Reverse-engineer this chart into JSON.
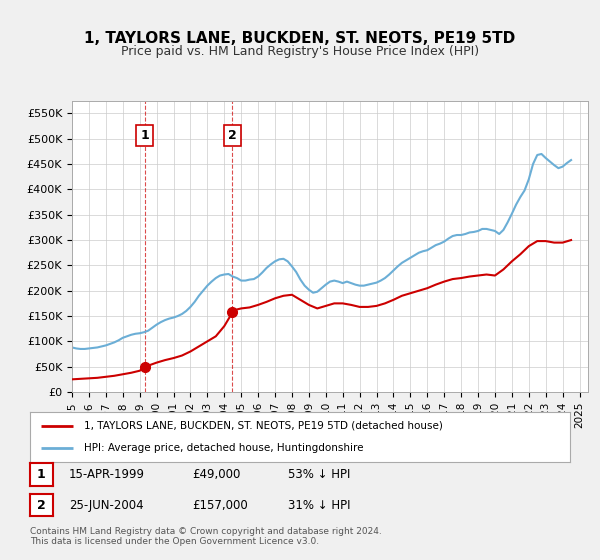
{
  "title": "1, TAYLORS LANE, BUCKDEN, ST. NEOTS, PE19 5TD",
  "subtitle": "Price paid vs. HM Land Registry's House Price Index (HPI)",
  "ylabel_values": [
    "£0",
    "£50K",
    "£100K",
    "£150K",
    "£200K",
    "£250K",
    "£300K",
    "£350K",
    "£400K",
    "£450K",
    "£500K",
    "£550K"
  ],
  "yticks": [
    0,
    50000,
    100000,
    150000,
    200000,
    250000,
    300000,
    350000,
    400000,
    450000,
    500000,
    550000
  ],
  "ylim": [
    0,
    575000
  ],
  "xlim_start": 1995.0,
  "xlim_end": 2025.5,
  "hpi_color": "#6baed6",
  "price_color": "#cc0000",
  "background_color": "#f0f0f0",
  "plot_bg_color": "#ffffff",
  "sale1_date": 1999.29,
  "sale1_price": 49000,
  "sale2_date": 2004.48,
  "sale2_price": 157000,
  "annotation1_label": "1",
  "annotation2_label": "2",
  "legend_line1": "1, TAYLORS LANE, BUCKDEN, ST. NEOTS, PE19 5TD (detached house)",
  "legend_line2": "HPI: Average price, detached house, Huntingdonshire",
  "table_row1": [
    "1",
    "15-APR-1999",
    "£49,000",
    "53% ↓ HPI"
  ],
  "table_row2": [
    "2",
    "25-JUN-2004",
    "£157,000",
    "31% ↓ HPI"
  ],
  "footer": "Contains HM Land Registry data © Crown copyright and database right 2024.\nThis data is licensed under the Open Government Licence v3.0.",
  "hpi_data": {
    "years": [
      1995.0,
      1995.25,
      1995.5,
      1995.75,
      1996.0,
      1996.25,
      1996.5,
      1996.75,
      1997.0,
      1997.25,
      1997.5,
      1997.75,
      1998.0,
      1998.25,
      1998.5,
      1998.75,
      1999.0,
      1999.25,
      1999.5,
      1999.75,
      2000.0,
      2000.25,
      2000.5,
      2000.75,
      2001.0,
      2001.25,
      2001.5,
      2001.75,
      2002.0,
      2002.25,
      2002.5,
      2002.75,
      2003.0,
      2003.25,
      2003.5,
      2003.75,
      2004.0,
      2004.25,
      2004.5,
      2004.75,
      2005.0,
      2005.25,
      2005.5,
      2005.75,
      2006.0,
      2006.25,
      2006.5,
      2006.75,
      2007.0,
      2007.25,
      2007.5,
      2007.75,
      2008.0,
      2008.25,
      2008.5,
      2008.75,
      2009.0,
      2009.25,
      2009.5,
      2009.75,
      2010.0,
      2010.25,
      2010.5,
      2010.75,
      2011.0,
      2011.25,
      2011.5,
      2011.75,
      2012.0,
      2012.25,
      2012.5,
      2012.75,
      2013.0,
      2013.25,
      2013.5,
      2013.75,
      2014.0,
      2014.25,
      2014.5,
      2014.75,
      2015.0,
      2015.25,
      2015.5,
      2015.75,
      2016.0,
      2016.25,
      2016.5,
      2016.75,
      2017.0,
      2017.25,
      2017.5,
      2017.75,
      2018.0,
      2018.25,
      2018.5,
      2018.75,
      2019.0,
      2019.25,
      2019.5,
      2019.75,
      2020.0,
      2020.25,
      2020.5,
      2020.75,
      2021.0,
      2021.25,
      2021.5,
      2021.75,
      2022.0,
      2022.25,
      2022.5,
      2022.75,
      2023.0,
      2023.25,
      2023.5,
      2023.75,
      2024.0,
      2024.25,
      2024.5
    ],
    "values": [
      88000,
      86000,
      85000,
      85000,
      86000,
      87000,
      88000,
      90000,
      92000,
      95000,
      98000,
      102000,
      107000,
      110000,
      113000,
      115000,
      116000,
      118000,
      121000,
      127000,
      133000,
      138000,
      142000,
      145000,
      147000,
      150000,
      154000,
      160000,
      168000,
      178000,
      190000,
      200000,
      210000,
      218000,
      225000,
      230000,
      232000,
      233000,
      228000,
      225000,
      220000,
      220000,
      222000,
      223000,
      228000,
      236000,
      245000,
      252000,
      258000,
      262000,
      263000,
      258000,
      248000,
      237000,
      222000,
      210000,
      202000,
      196000,
      198000,
      205000,
      212000,
      218000,
      220000,
      218000,
      215000,
      218000,
      215000,
      212000,
      210000,
      210000,
      212000,
      214000,
      216000,
      220000,
      225000,
      232000,
      240000,
      248000,
      255000,
      260000,
      265000,
      270000,
      275000,
      278000,
      280000,
      285000,
      290000,
      293000,
      297000,
      303000,
      308000,
      310000,
      310000,
      312000,
      315000,
      316000,
      318000,
      322000,
      322000,
      320000,
      318000,
      312000,
      320000,
      335000,
      352000,
      370000,
      385000,
      398000,
      420000,
      450000,
      468000,
      470000,
      462000,
      455000,
      448000,
      442000,
      445000,
      452000,
      458000
    ]
  },
  "price_data": {
    "years": [
      1995.0,
      1995.5,
      1996.0,
      1996.5,
      1997.0,
      1997.5,
      1998.0,
      1998.5,
      1999.0,
      1999.29,
      1999.5,
      2000.0,
      2000.5,
      2001.0,
      2001.5,
      2002.0,
      2002.5,
      2003.0,
      2003.5,
      2004.0,
      2004.48,
      2004.75,
      2005.0,
      2005.5,
      2006.0,
      2006.5,
      2007.0,
      2007.5,
      2008.0,
      2008.5,
      2009.0,
      2009.5,
      2010.0,
      2010.5,
      2011.0,
      2011.5,
      2012.0,
      2012.5,
      2013.0,
      2013.5,
      2014.0,
      2014.5,
      2015.0,
      2015.5,
      2016.0,
      2016.5,
      2017.0,
      2017.5,
      2018.0,
      2018.5,
      2019.0,
      2019.5,
      2020.0,
      2020.5,
      2021.0,
      2021.5,
      2022.0,
      2022.5,
      2023.0,
      2023.5,
      2024.0,
      2024.5
    ],
    "values": [
      25000,
      26000,
      27000,
      28000,
      30000,
      32000,
      35000,
      38000,
      42000,
      49000,
      52000,
      58000,
      63000,
      67000,
      72000,
      80000,
      90000,
      100000,
      110000,
      130000,
      157000,
      163000,
      165000,
      167000,
      172000,
      178000,
      185000,
      190000,
      192000,
      182000,
      172000,
      165000,
      170000,
      175000,
      175000,
      172000,
      168000,
      168000,
      170000,
      175000,
      182000,
      190000,
      195000,
      200000,
      205000,
      212000,
      218000,
      223000,
      225000,
      228000,
      230000,
      232000,
      230000,
      242000,
      258000,
      272000,
      288000,
      298000,
      298000,
      295000,
      295000,
      300000
    ]
  },
  "xtick_years": [
    1995,
    1996,
    1997,
    1998,
    1999,
    2000,
    2001,
    2002,
    2003,
    2004,
    2005,
    2006,
    2007,
    2008,
    2009,
    2010,
    2011,
    2012,
    2013,
    2014,
    2015,
    2016,
    2017,
    2018,
    2019,
    2020,
    2021,
    2022,
    2023,
    2024,
    2025
  ]
}
